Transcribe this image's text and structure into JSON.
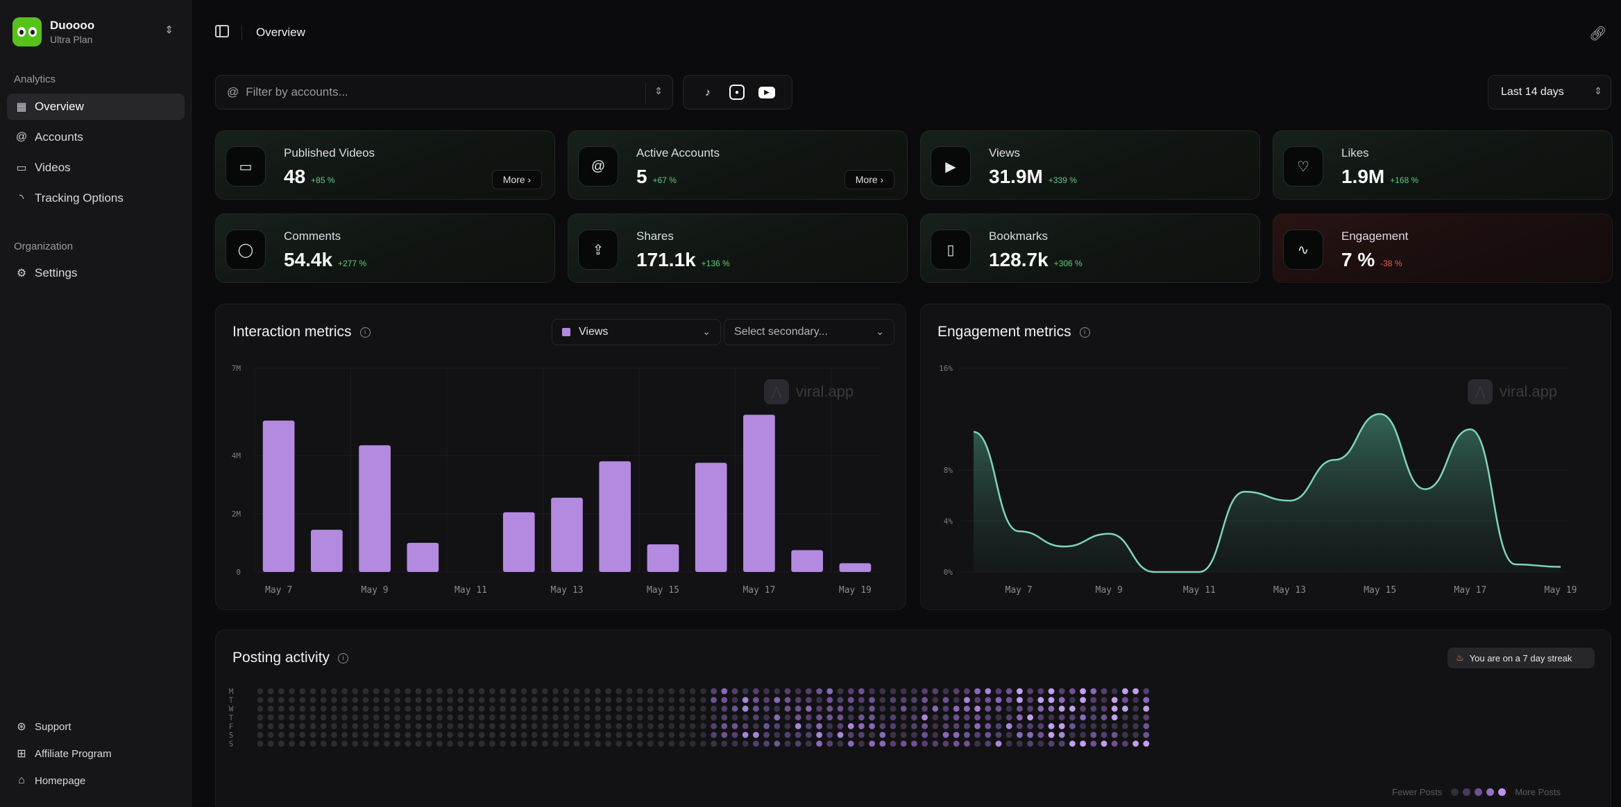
{
  "sidebar": {
    "brand": {
      "name": "Duoooo",
      "plan": "Ultra Plan"
    },
    "sections": {
      "analytics": "Analytics",
      "organization": "Organization"
    },
    "items": [
      {
        "label": "Overview",
        "icon": "dashboard-icon"
      },
      {
        "label": "Accounts",
        "icon": "at-icon"
      },
      {
        "label": "Videos",
        "icon": "video-icon"
      },
      {
        "label": "Tracking Options",
        "icon": "rss-icon"
      },
      {
        "label": "Settings",
        "icon": "gear-icon"
      }
    ],
    "footer": [
      {
        "label": "Support",
        "icon": "lifebuoy-icon"
      },
      {
        "label": "Affiliate Program",
        "icon": "gift-icon"
      },
      {
        "label": "Homepage",
        "icon": "home-icon"
      }
    ]
  },
  "topbar": {
    "breadcrumb": "Overview"
  },
  "filters": {
    "accounts_placeholder": "Filter by accounts...",
    "date_range": "Last 14 days"
  },
  "stats": [
    {
      "label": "Published Videos",
      "value": "48",
      "change": "+85 %",
      "more": "More"
    },
    {
      "label": "Active Accounts",
      "value": "5",
      "change": "+67 %",
      "more": "More"
    },
    {
      "label": "Views",
      "value": "31.9M",
      "change": "+339 %"
    },
    {
      "label": "Likes",
      "value": "1.9M",
      "change": "+168 %"
    },
    {
      "label": "Comments",
      "value": "54.4k",
      "change": "+277 %"
    },
    {
      "label": "Shares",
      "value": "171.1k",
      "change": "+136 %"
    },
    {
      "label": "Bookmarks",
      "value": "128.7k",
      "change": "+306 %"
    },
    {
      "label": "Engagement",
      "value": "7 %",
      "change": "-38 %"
    }
  ],
  "interaction": {
    "title": "Interaction metrics",
    "primary": "Views",
    "secondary_placeholder": "Select secondary...",
    "watermark": "viral.app"
  },
  "engagement": {
    "title": "Engagement metrics",
    "watermark": "viral.app"
  },
  "posting": {
    "title": "Posting activity",
    "streak": "You are on a 7 day streak",
    "days": [
      "M",
      "T",
      "W",
      "T",
      "F",
      "S",
      "S"
    ],
    "legend_less": "Fewer Posts",
    "legend_more": "More Posts"
  },
  "colors": {
    "accent": "#b38ae0",
    "positive": "#5fcf7c",
    "negative": "#e65a5a",
    "line": "#7fd6b6"
  },
  "chart_data": [
    {
      "type": "bar",
      "title": "Interaction metrics",
      "series": [
        {
          "name": "Views",
          "values": [
            5.2,
            1.45,
            4.35,
            1.0,
            0,
            2.05,
            2.55,
            3.8,
            0.95,
            3.75,
            5.4,
            0.75,
            0.3
          ]
        }
      ],
      "categories": [
        "May 7",
        "May 8",
        "May 9",
        "May 10",
        "May 11",
        "May 12",
        "May 13",
        "May 14",
        "May 15",
        "May 16",
        "May 17",
        "May 18",
        "May 19"
      ],
      "tick_labels_x": [
        "May 7",
        "May 9",
        "May 11",
        "May 13",
        "May 15",
        "May 17",
        "May 19"
      ],
      "ytick_labels": [
        "0",
        "2M",
        "4M",
        "7M"
      ],
      "yticks": [
        0,
        2,
        4,
        7
      ],
      "ylim": [
        0,
        7
      ]
    },
    {
      "type": "area",
      "title": "Engagement metrics",
      "x": [
        "May 6",
        "May 7",
        "May 8",
        "May 9",
        "May 10",
        "May 11",
        "May 12",
        "May 13",
        "May 14",
        "May 15",
        "May 16",
        "May 17",
        "May 18",
        "May 19"
      ],
      "series": [
        {
          "values": [
            11.0,
            3.2,
            2.0,
            3.0,
            0.0,
            0.0,
            6.3,
            5.6,
            8.8,
            12.4,
            6.5,
            11.2,
            0.6,
            0.4
          ]
        }
      ],
      "tick_labels_x": [
        "May 7",
        "May 9",
        "May 11",
        "May 13",
        "May 15",
        "May 17",
        "May 19"
      ],
      "ytick_labels": [
        "0%",
        "4%",
        "8%",
        "16%"
      ],
      "yticks": [
        0,
        4,
        8,
        16
      ],
      "ylim": [
        0,
        16
      ]
    }
  ]
}
